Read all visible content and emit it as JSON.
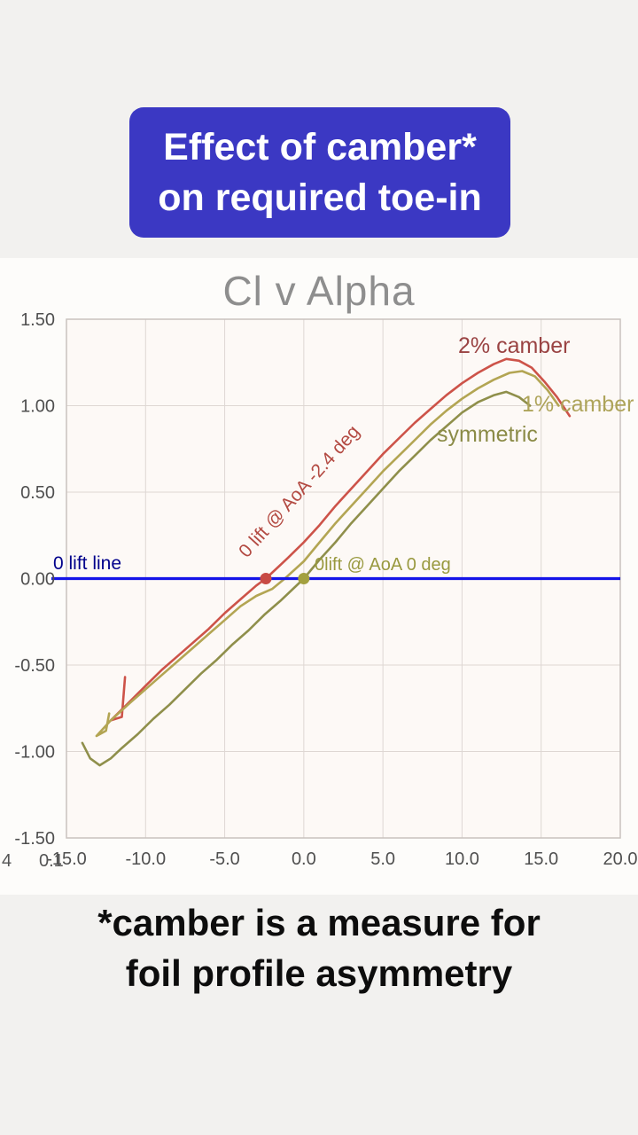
{
  "banner": {
    "line1": "Effect of camber*",
    "line2": "on required toe-in",
    "bg_color": "#3b38c3",
    "text_color": "#ffffff"
  },
  "caption": {
    "line1": "*camber is a measure for",
    "line2": "foil profile asymmetry"
  },
  "chart_data": {
    "type": "line",
    "title": "Cl v Alpha",
    "xlabel": "",
    "ylabel": "",
    "xlim": [
      -15,
      20
    ],
    "ylim": [
      -1.5,
      1.5
    ],
    "grid": true,
    "x_ticks": [
      -15,
      -10,
      -5,
      0,
      5,
      10,
      15,
      20
    ],
    "x_tick_labels": [
      "-15.0",
      "-10.0",
      "-5.0",
      "0.0",
      "5.0",
      "10.0",
      "15.0",
      "20.0"
    ],
    "y_ticks": [
      1.5,
      1.0,
      0.5,
      0.0,
      -0.5,
      -1.0,
      -1.5
    ],
    "y_tick_labels": [
      "1.50",
      "1.00",
      "0.50",
      "0.00",
      "-0.50",
      "-1.00",
      "-1.50"
    ],
    "series": [
      {
        "name": "2% camber",
        "color": "#cd5349",
        "zero_lift_aoa_deg": -2.4,
        "points": [
          [
            -11.3,
            -0.57
          ],
          [
            -11.5,
            -0.8
          ],
          [
            -12.2,
            -0.82
          ],
          [
            -11.2,
            -0.73
          ],
          [
            -10,
            -0.62
          ],
          [
            -9,
            -0.53
          ],
          [
            -8,
            -0.45
          ],
          [
            -7,
            -0.37
          ],
          [
            -6,
            -0.29
          ],
          [
            -5,
            -0.2
          ],
          [
            -4,
            -0.12
          ],
          [
            -3,
            -0.04
          ],
          [
            -2.4,
            0.0
          ],
          [
            -1,
            0.12
          ],
          [
            0,
            0.21
          ],
          [
            1,
            0.31
          ],
          [
            2,
            0.42
          ],
          [
            3,
            0.52
          ],
          [
            4,
            0.62
          ],
          [
            5,
            0.72
          ],
          [
            6,
            0.81
          ],
          [
            7,
            0.9
          ],
          [
            8,
            0.98
          ],
          [
            9,
            1.06
          ],
          [
            10,
            1.13
          ],
          [
            11,
            1.19
          ],
          [
            12,
            1.24
          ],
          [
            12.8,
            1.27
          ],
          [
            13.6,
            1.26
          ],
          [
            14.4,
            1.22
          ],
          [
            15.2,
            1.14
          ],
          [
            16,
            1.05
          ],
          [
            16.8,
            0.94
          ]
        ]
      },
      {
        "name": "1% camber",
        "color": "#b3a553",
        "zero_lift_aoa_deg": -1.2,
        "points": [
          [
            -12.3,
            -0.78
          ],
          [
            -12.5,
            -0.88
          ],
          [
            -13.1,
            -0.91
          ],
          [
            -12.2,
            -0.82
          ],
          [
            -11,
            -0.72
          ],
          [
            -10,
            -0.64
          ],
          [
            -9,
            -0.56
          ],
          [
            -8,
            -0.48
          ],
          [
            -7,
            -0.4
          ],
          [
            -6,
            -0.32
          ],
          [
            -5,
            -0.24
          ],
          [
            -4,
            -0.16
          ],
          [
            -3,
            -0.1
          ],
          [
            -2,
            -0.06
          ],
          [
            -1.2,
            0.0
          ],
          [
            0,
            0.1
          ],
          [
            1,
            0.21
          ],
          [
            2,
            0.32
          ],
          [
            3,
            0.42
          ],
          [
            4,
            0.52
          ],
          [
            5,
            0.62
          ],
          [
            6,
            0.71
          ],
          [
            7,
            0.8
          ],
          [
            8,
            0.89
          ],
          [
            9,
            0.97
          ],
          [
            10,
            1.04
          ],
          [
            11,
            1.1
          ],
          [
            12,
            1.15
          ],
          [
            13,
            1.19
          ],
          [
            13.8,
            1.2
          ],
          [
            14.6,
            1.17
          ],
          [
            15.4,
            1.09
          ],
          [
            16.1,
            1.0
          ]
        ]
      },
      {
        "name": "symmetric",
        "color": "#8f8f4b",
        "zero_lift_aoa_deg": 0,
        "points": [
          [
            -14.0,
            -0.95
          ],
          [
            -13.5,
            -1.04
          ],
          [
            -12.9,
            -1.08
          ],
          [
            -12.2,
            -1.04
          ],
          [
            -11.5,
            -0.98
          ],
          [
            -10.5,
            -0.9
          ],
          [
            -9.5,
            -0.81
          ],
          [
            -8.5,
            -0.73
          ],
          [
            -7.5,
            -0.64
          ],
          [
            -6.5,
            -0.55
          ],
          [
            -5.5,
            -0.47
          ],
          [
            -4.5,
            -0.38
          ],
          [
            -3.5,
            -0.3
          ],
          [
            -2.5,
            -0.21
          ],
          [
            -1.5,
            -0.13
          ],
          [
            0,
            0.0
          ],
          [
            1,
            0.11
          ],
          [
            2,
            0.21
          ],
          [
            3,
            0.32
          ],
          [
            4,
            0.42
          ],
          [
            5,
            0.52
          ],
          [
            6,
            0.62
          ],
          [
            7,
            0.71
          ],
          [
            8,
            0.8
          ],
          [
            9,
            0.88
          ],
          [
            10,
            0.96
          ],
          [
            11,
            1.02
          ],
          [
            12,
            1.06
          ],
          [
            12.8,
            1.08
          ],
          [
            13.6,
            1.05
          ],
          [
            14.3,
            1.0
          ]
        ]
      }
    ],
    "zero_lift_line": {
      "y": 0,
      "color": "#1515e8",
      "label": "0 lift line"
    },
    "markers": [
      {
        "name": "red-zero-lift-marker",
        "x": -2.4,
        "y": 0,
        "color": "#c84a44"
      },
      {
        "name": "olive-zero-lift-marker",
        "x": 0,
        "y": 0,
        "color": "#a3a03f"
      }
    ],
    "annotations": [
      {
        "id": "zero-lift-line-label",
        "text": "0 lift line",
        "color": "#00008b"
      },
      {
        "id": "red-zero-lift-label",
        "text": "0 lift @ AoA -2.4 deg",
        "color": "#b34a42",
        "rotation_deg": -48
      },
      {
        "id": "olive-zero-lift-label",
        "text": "0lift @ AoA 0 deg",
        "color": "#99993f"
      },
      {
        "id": "series-label-2pct",
        "text": "2% camber",
        "color": "#9a4343"
      },
      {
        "id": "series-label-1pct",
        "text": "1% camber",
        "color": "#aea45a"
      },
      {
        "id": "series-label-sym",
        "text": "symmetric",
        "color": "#8b8b47"
      },
      {
        "id": "axis-artifact-1",
        "text": "4",
        "color": "#555555"
      },
      {
        "id": "axis-artifact-2",
        "text": "0.1",
        "color": "#555555"
      }
    ],
    "legend_position": "none",
    "tick_color": "#4f4f4f",
    "grid_color": "#ded7d3",
    "border_color": "#c9c2be",
    "plot_bg": "#fdf9f6",
    "title_color": "#8e8e8e"
  }
}
